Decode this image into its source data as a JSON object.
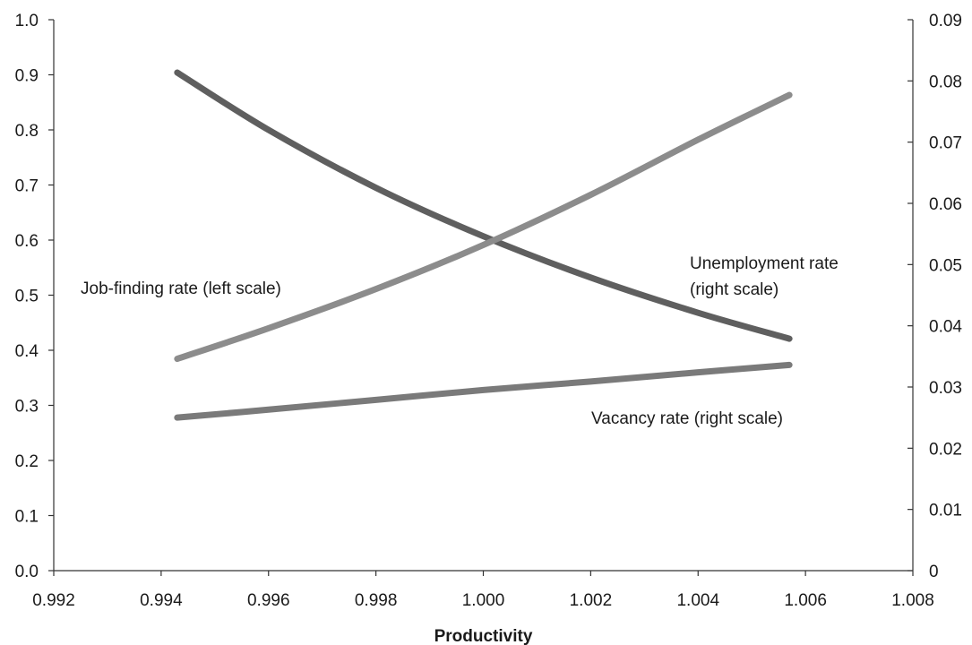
{
  "chart_data": {
    "type": "line",
    "xlabel": "Productivity",
    "x_ticks": [
      "0.992",
      "0.994",
      "0.996",
      "0.998",
      "1.000",
      "1.002",
      "1.004",
      "1.006",
      "1.008"
    ],
    "xlim": [
      0.992,
      1.008
    ],
    "left_axis": {
      "ylim": [
        0,
        1.0
      ],
      "ticks": [
        "0.0",
        "0.1",
        "0.2",
        "0.3",
        "0.4",
        "0.5",
        "0.6",
        "0.7",
        "0.8",
        "0.9",
        "1.0"
      ]
    },
    "right_axis": {
      "ylim": [
        0,
        0.09
      ],
      "ticks": [
        "0",
        "0.01",
        "0.02",
        "0.03",
        "0.04",
        "0.05",
        "0.06",
        "0.07",
        "0.08",
        "0.09"
      ]
    },
    "grid": false,
    "series": [
      {
        "name": "Job-finding rate (left scale)",
        "axis": "left",
        "color": "#5f5f5f",
        "x": [
          0.9943,
          0.996,
          0.998,
          1.0,
          1.002,
          1.004,
          1.0057
        ],
        "y": [
          0.904,
          0.8,
          0.695,
          0.607,
          0.532,
          0.468,
          0.421
        ]
      },
      {
        "name": "Unemployment rate (right scale)",
        "axis": "right",
        "color": "#8c8c8c",
        "x": [
          0.9943,
          0.996,
          0.998,
          1.0,
          1.002,
          1.004,
          1.0057
        ],
        "y": [
          0.0346,
          0.0396,
          0.046,
          0.0532,
          0.0614,
          0.0704,
          0.0777
        ]
      },
      {
        "name": "Vacancy rate (right scale)",
        "axis": "right",
        "color": "#7a7a7a",
        "x": [
          0.9943,
          0.996,
          0.998,
          1.0,
          1.002,
          1.004,
          1.0057
        ],
        "y": [
          0.025,
          0.0263,
          0.0279,
          0.0295,
          0.0309,
          0.0324,
          0.0336
        ]
      }
    ],
    "annotations": {
      "job_finding": "Job-finding rate (left scale)",
      "unemployment_line1": "Unemployment rate",
      "unemployment_line2": "(right scale)",
      "vacancy": "Vacancy rate (right scale)"
    }
  }
}
